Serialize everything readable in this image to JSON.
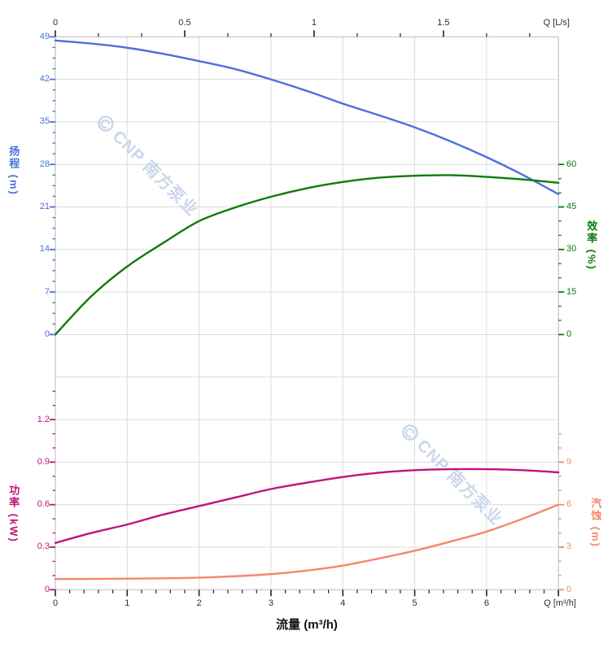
{
  "watermark": {
    "text": "CNP 南方泵业",
    "color": "#c8d6e9"
  },
  "colors": {
    "head": "#4a70df",
    "efficiency": "#0a7c0a",
    "power": "#c0137e",
    "npsh": "#f5876b",
    "grid": "#dcdcdc",
    "spine": "#c2c2c2",
    "axis_text": "#2f2f2f"
  },
  "top_axis": {
    "unit_label": "Q [L/s]",
    "ticks": [
      {
        "v": 0,
        "label": "0"
      },
      {
        "v": 0.5,
        "label": "0.5"
      },
      {
        "v": 1,
        "label": "1"
      },
      {
        "v": 1.5,
        "label": "1.5"
      }
    ]
  },
  "bottom_axis": {
    "unit_label": "Q [m³/h]",
    "title": "流量 (m³/h)",
    "ticks": [
      {
        "v": 0,
        "label": "0"
      },
      {
        "v": 1,
        "label": "1"
      },
      {
        "v": 2,
        "label": "2"
      },
      {
        "v": 3,
        "label": "3"
      },
      {
        "v": 4,
        "label": "4"
      },
      {
        "v": 5,
        "label": "5"
      },
      {
        "v": 6,
        "label": "6"
      }
    ]
  },
  "head_axis": {
    "title": "扬程 (m)",
    "ticks": [
      {
        "v": 49,
        "label": "49"
      },
      {
        "v": 42,
        "label": "42"
      },
      {
        "v": 35,
        "label": "35"
      },
      {
        "v": 28,
        "label": "28"
      },
      {
        "v": 21,
        "label": "21"
      },
      {
        "v": 14,
        "label": "14"
      },
      {
        "v": 7,
        "label": "7"
      },
      {
        "v": 0,
        "label": "0"
      }
    ]
  },
  "eff_axis": {
    "title": "效率 (%)",
    "ticks": [
      {
        "v": 60,
        "label": "60"
      },
      {
        "v": 45,
        "label": "45"
      },
      {
        "v": 30,
        "label": "30"
      },
      {
        "v": 15,
        "label": "15"
      },
      {
        "v": 0,
        "label": "0"
      }
    ]
  },
  "power_axis": {
    "title": "功率 (kW)",
    "ticks": [
      {
        "v": 1.2,
        "label": "1.2"
      },
      {
        "v": 0.9,
        "label": "0.9"
      },
      {
        "v": 0.6,
        "label": "0.6"
      },
      {
        "v": 0.3,
        "label": "0.3"
      },
      {
        "v": 0,
        "label": "0"
      }
    ]
  },
  "npsh_axis": {
    "title": "汽蚀 (m)",
    "ticks": [
      {
        "v": 9,
        "label": "9"
      },
      {
        "v": 6,
        "label": "6"
      },
      {
        "v": 3,
        "label": "3"
      },
      {
        "v": 0,
        "label": "0"
      }
    ]
  },
  "chart_data": [
    {
      "type": "line",
      "title": "扬程 / 效率 特性曲线",
      "xlabel": "流量 (m³/h)",
      "x2label": "Q [L/s]",
      "x_range_m3h": [
        0,
        7
      ],
      "x": [
        0,
        0.5,
        1,
        1.5,
        2,
        2.5,
        3,
        3.5,
        4,
        4.5,
        5,
        5.5,
        6,
        6.5,
        7
      ],
      "series": [
        {
          "name": "扬程",
          "unit": "m",
          "axis": "head",
          "ylim": [
            0,
            49
          ],
          "values": [
            48.4,
            47.9,
            47.2,
            46.2,
            45.0,
            43.7,
            42.0,
            40.1,
            38.0,
            36.1,
            34.1,
            31.8,
            29.2,
            26.3,
            23.1
          ]
        },
        {
          "name": "效率",
          "unit": "%",
          "axis": "efficiency",
          "ylim": [
            0,
            60
          ],
          "values": [
            0,
            13.5,
            24.0,
            32.3,
            40.0,
            44.8,
            48.6,
            51.6,
            53.8,
            55.3,
            56.0,
            56.2,
            55.6,
            54.7,
            53.5
          ]
        }
      ]
    },
    {
      "type": "line",
      "title": "功率 / 汽蚀 特性曲线",
      "xlabel": "流量 (m³/h)",
      "x_range_m3h": [
        0,
        7
      ],
      "x": [
        0,
        0.5,
        1,
        1.5,
        2,
        2.5,
        3,
        3.5,
        4,
        4.5,
        5,
        5.5,
        6,
        6.5,
        7
      ],
      "series": [
        {
          "name": "功率",
          "unit": "kW",
          "axis": "power",
          "ylim": [
            0,
            1.2
          ],
          "values": [
            0.33,
            0.4,
            0.46,
            0.53,
            0.59,
            0.65,
            0.71,
            0.755,
            0.795,
            0.825,
            0.843,
            0.85,
            0.85,
            0.843,
            0.828
          ]
        },
        {
          "name": "汽蚀",
          "unit": "m",
          "axis": "npsh",
          "ylim": [
            0,
            9
          ],
          "values": [
            0.75,
            0.76,
            0.78,
            0.8,
            0.85,
            0.95,
            1.1,
            1.35,
            1.7,
            2.2,
            2.75,
            3.4,
            4.1,
            5.0,
            6.0
          ]
        }
      ]
    }
  ]
}
